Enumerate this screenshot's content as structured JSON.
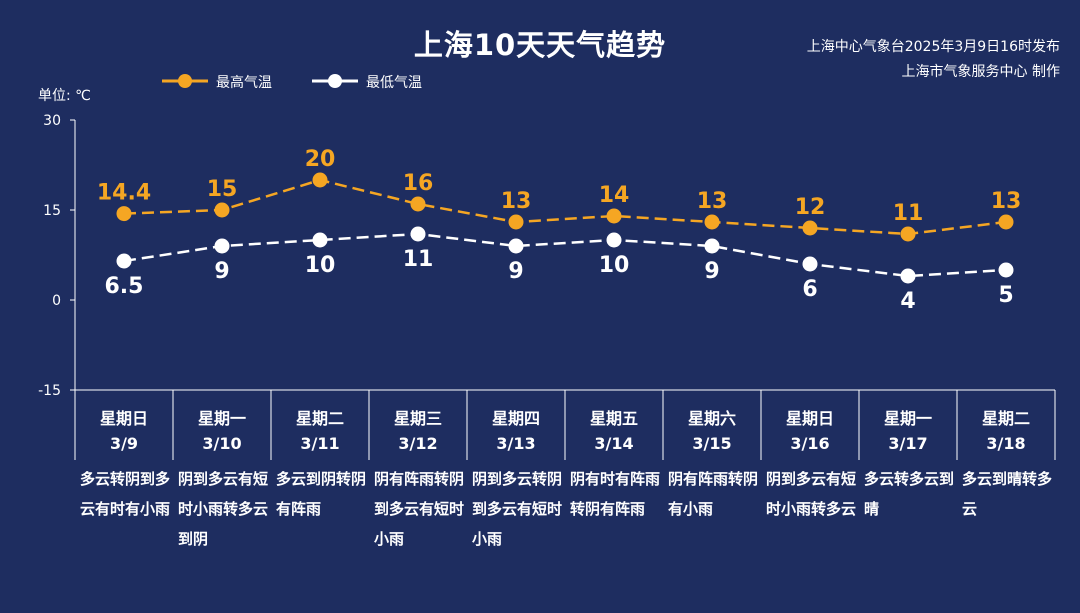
{
  "title": "上海10天天气趋势",
  "issuer": {
    "line1": "上海中心气象台2025年3月9日16时发布",
    "line2": "上海市气象服务中心 制作"
  },
  "colors": {
    "background": "#1e2d60",
    "high": "#f5a623",
    "low": "#ffffff",
    "text": "#ffffff"
  },
  "chart_data": {
    "type": "line",
    "title": "上海10天天气趋势",
    "unit_label": "单位: ℃",
    "ylim": [
      -15,
      30
    ],
    "yticks": [
      -15,
      0,
      15,
      30
    ],
    "grid": false,
    "legend_position": "top-left",
    "line_style": "dashed",
    "categories": [
      "3/9",
      "3/10",
      "3/11",
      "3/12",
      "3/13",
      "3/14",
      "3/15",
      "3/16",
      "3/17",
      "3/18"
    ],
    "series": [
      {
        "name": "最高气温",
        "color": "#f5a623",
        "values": [
          14.4,
          15,
          20,
          16,
          13,
          14,
          13,
          12,
          11,
          13
        ]
      },
      {
        "name": "最低气温",
        "color": "#ffffff",
        "values": [
          6.5,
          9,
          10,
          11,
          9,
          10,
          9,
          6,
          4,
          5
        ]
      }
    ]
  },
  "days": [
    {
      "weekday": "星期日",
      "date": "3/9",
      "weather": "多云转阴到多云有时有小雨"
    },
    {
      "weekday": "星期一",
      "date": "3/10",
      "weather": "阴到多云有短时小雨转多云到阴"
    },
    {
      "weekday": "星期二",
      "date": "3/11",
      "weather": "多云到阴转阴有阵雨"
    },
    {
      "weekday": "星期三",
      "date": "3/12",
      "weather": "阴有阵雨转阴到多云有短时小雨"
    },
    {
      "weekday": "星期四",
      "date": "3/13",
      "weather": "阴到多云转阴到多云有短时小雨"
    },
    {
      "weekday": "星期五",
      "date": "3/14",
      "weather": "阴有时有阵雨转阴有阵雨"
    },
    {
      "weekday": "星期六",
      "date": "3/15",
      "weather": "阴有阵雨转阴有小雨"
    },
    {
      "weekday": "星期日",
      "date": "3/16",
      "weather": "阴到多云有短时小雨转多云"
    },
    {
      "weekday": "星期一",
      "date": "3/17",
      "weather": "多云转多云到晴"
    },
    {
      "weekday": "星期二",
      "date": "3/18",
      "weather": "多云到晴转多云"
    }
  ]
}
